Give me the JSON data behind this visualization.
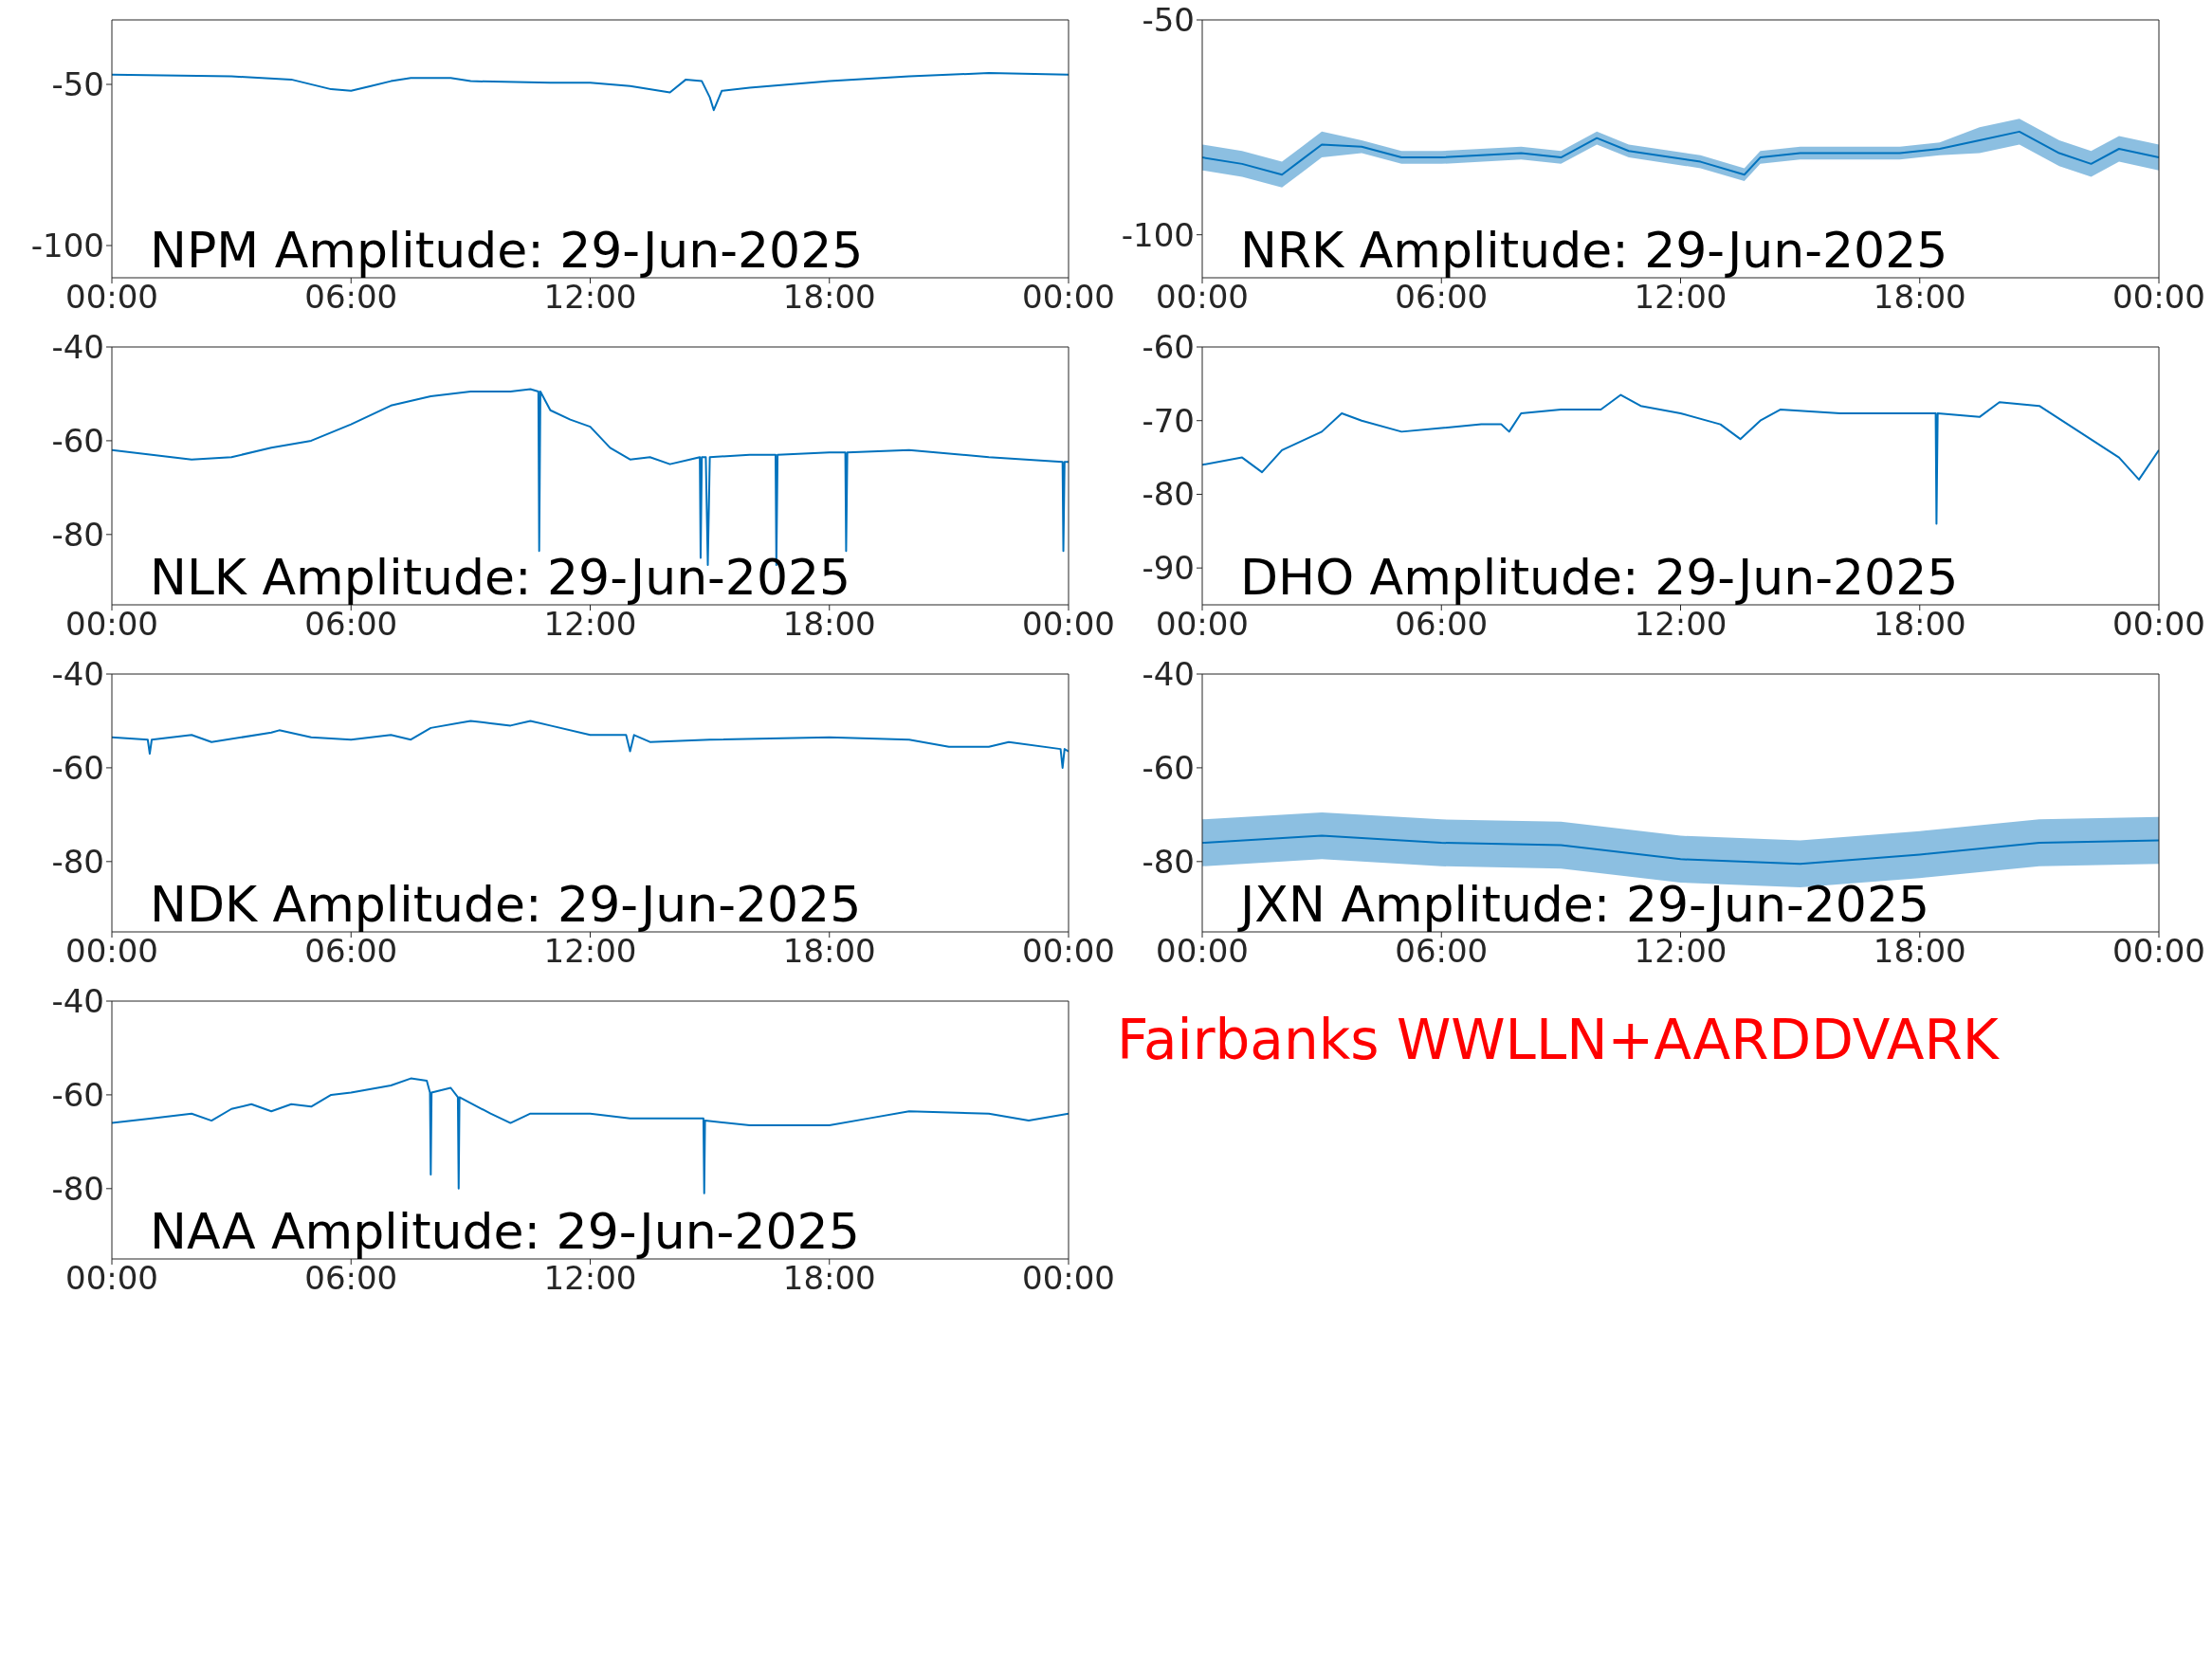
{
  "chart_data": [
    {
      "type": "line",
      "title": "NPM Amplitude: 29-Jun-2025",
      "xlim": [
        0,
        24
      ],
      "xticks": [
        {
          "value": 0,
          "label": "00:00"
        },
        {
          "value": 6,
          "label": "06:00"
        },
        {
          "value": 12,
          "label": "12:00"
        },
        {
          "value": 18,
          "label": "18:00"
        },
        {
          "value": 24,
          "label": "00:00"
        }
      ],
      "ylim": [
        -110,
        -30
      ],
      "yticks": [
        -100,
        -50
      ],
      "series": [
        {
          "color": "#0072bd",
          "x": [
            0,
            3,
            4.5,
            5.5,
            6,
            6.5,
            7,
            7.5,
            8.5,
            9,
            11,
            12,
            13,
            14,
            14.4,
            14.8,
            15,
            15.1,
            15.3,
            16,
            18,
            20,
            22,
            24
          ],
          "values": [
            -47,
            -47.5,
            -48.5,
            -51.5,
            -52,
            -50.5,
            -49,
            -48,
            -48,
            -49,
            -49.5,
            -49.5,
            -50.5,
            -52.5,
            -48.5,
            -49,
            -54,
            -58,
            -52,
            -51,
            -49,
            -47.5,
            -46.5,
            -47
          ]
        }
      ]
    },
    {
      "type": "line",
      "title": "NRK Amplitude: 29-Jun-2025",
      "xlim": [
        0,
        24
      ],
      "xticks": [
        {
          "value": 0,
          "label": "00:00"
        },
        {
          "value": 6,
          "label": "06:00"
        },
        {
          "value": 12,
          "label": "12:00"
        },
        {
          "value": 18,
          "label": "18:00"
        },
        {
          "value": 24,
          "label": "00:00"
        }
      ],
      "ylim": [
        -110,
        -50
      ],
      "yticks": [
        -100,
        -50
      ],
      "series": [
        {
          "color": "#0072bd",
          "x": [
            0,
            1,
            2,
            2.5,
            3,
            4,
            5,
            6,
            8,
            9,
            9.9,
            10.7,
            12.5,
            13.6,
            14,
            15,
            17.5,
            18.5,
            19.5,
            20.5,
            21.5,
            22.3,
            23,
            24
          ],
          "values": [
            -82,
            -83.5,
            -86,
            -82.5,
            -79,
            -79.5,
            -82,
            -82,
            -81,
            -82,
            -77.5,
            -80.5,
            -83,
            -86,
            -82,
            -81,
            -81,
            -80,
            -78,
            -76,
            -81,
            -83.5,
            -80,
            -82
          ],
          "lower": [
            -85,
            -86.5,
            -89,
            -85.5,
            -82,
            -81,
            -83.5,
            -83.5,
            -82.5,
            -83.5,
            -79,
            -82,
            -84.5,
            -87.5,
            -83.5,
            -82.5,
            -82.5,
            -81.5,
            -81,
            -79,
            -84,
            -86.5,
            -83,
            -85
          ],
          "upper": [
            -79,
            -80.5,
            -83,
            -79.5,
            -76,
            -78,
            -80.5,
            -80.5,
            -79.5,
            -80.5,
            -76,
            -79,
            -81.5,
            -84.5,
            -80.5,
            -79.5,
            -79.5,
            -78.5,
            -75,
            -73,
            -78,
            -80.5,
            -77,
            -79
          ]
        }
      ]
    },
    {
      "type": "line",
      "title": "NLK Amplitude: 29-Jun-2025",
      "xlim": [
        0,
        24
      ],
      "xticks": [
        {
          "value": 0,
          "label": "00:00"
        },
        {
          "value": 6,
          "label": "06:00"
        },
        {
          "value": 12,
          "label": "12:00"
        },
        {
          "value": 18,
          "label": "18:00"
        },
        {
          "value": 24,
          "label": "00:00"
        }
      ],
      "ylim": [
        -95,
        -40
      ],
      "yticks": [
        -80,
        -60,
        -40
      ],
      "series": [
        {
          "color": "#0072bd",
          "x": [
            0,
            2,
            3,
            4,
            5,
            6,
            7,
            8,
            9,
            10,
            10.5,
            10.7,
            10.72,
            10.75,
            11,
            11.5,
            12,
            12.5,
            13,
            13.5,
            14,
            14.5,
            14.75,
            14.77,
            14.8,
            14.9,
            14.95,
            15,
            16,
            16.65,
            16.67,
            16.7,
            18,
            18.4,
            18.42,
            18.45,
            20,
            22,
            23.85,
            23.87,
            23.9,
            24
          ],
          "values": [
            -62,
            -64,
            -63.5,
            -61.5,
            -60,
            -56.5,
            -52.5,
            -50.5,
            -49.5,
            -49.5,
            -49,
            -49.5,
            -83.5,
            -49.5,
            -53.5,
            -55.5,
            -57,
            -61.5,
            -64,
            -63.5,
            -65,
            -64,
            -63.5,
            -85,
            -63.5,
            -63.5,
            -86.5,
            -63.5,
            -63,
            -63,
            -86.5,
            -63,
            -62.5,
            -62.5,
            -83.5,
            -62.5,
            -62,
            -63.5,
            -64.5,
            -83.5,
            -64.5,
            -64.5
          ]
        }
      ]
    },
    {
      "type": "line",
      "title": "DHO Amplitude: 29-Jun-2025",
      "xlim": [
        0,
        24
      ],
      "xticks": [
        {
          "value": 0,
          "label": "00:00"
        },
        {
          "value": 6,
          "label": "06:00"
        },
        {
          "value": 12,
          "label": "12:00"
        },
        {
          "value": 18,
          "label": "18:00"
        },
        {
          "value": 24,
          "label": "00:00"
        }
      ],
      "ylim": [
        -95,
        -60
      ],
      "yticks": [
        -90,
        -80,
        -70,
        -60
      ],
      "series": [
        {
          "color": "#0072bd",
          "x": [
            0,
            1,
            1.5,
            2,
            3,
            3.5,
            4,
            5,
            6,
            7,
            7.5,
            7.7,
            8,
            9,
            10,
            10.5,
            11,
            12,
            13,
            13.5,
            14,
            14.5,
            16,
            18,
            18.4,
            18.42,
            18.45,
            19.5,
            20,
            21,
            22,
            23,
            23.5,
            24
          ],
          "values": [
            -76,
            -75,
            -77,
            -74,
            -71.5,
            -69,
            -70,
            -71.5,
            -71,
            -70.5,
            -70.5,
            -71.5,
            -69,
            -68.5,
            -68.5,
            -66.5,
            -68,
            -69,
            -70.5,
            -72.5,
            -70,
            -68.5,
            -69,
            -69,
            -69,
            -84,
            -69,
            -69.5,
            -67.5,
            -68,
            -71.5,
            -75,
            -78,
            -74
          ]
        }
      ]
    },
    {
      "type": "line",
      "title": "NDK Amplitude: 29-Jun-2025",
      "xlim": [
        0,
        24
      ],
      "xticks": [
        {
          "value": 0,
          "label": "00:00"
        },
        {
          "value": 6,
          "label": "06:00"
        },
        {
          "value": 12,
          "label": "12:00"
        },
        {
          "value": 18,
          "label": "18:00"
        },
        {
          "value": 24,
          "label": "00:00"
        }
      ],
      "ylim": [
        -95,
        -40
      ],
      "yticks": [
        -80,
        -60,
        -40
      ],
      "series": [
        {
          "color": "#0072bd",
          "x": [
            0,
            0.9,
            0.95,
            1,
            2,
            2.5,
            4,
            4.2,
            5,
            6,
            7,
            7.5,
            8,
            9,
            9.5,
            10,
            10.5,
            11,
            12,
            12.9,
            13,
            13.1,
            13.5,
            15,
            18,
            20,
            21,
            22,
            22.5,
            23.8,
            23.85,
            23.9,
            24
          ],
          "values": [
            -53.5,
            -54,
            -57,
            -54,
            -53,
            -54.5,
            -52.5,
            -52,
            -53.5,
            -54,
            -53,
            -54,
            -51.5,
            -50,
            -50.5,
            -51,
            -50,
            -51,
            -53,
            -53,
            -56.5,
            -53,
            -54.5,
            -54,
            -53.5,
            -54,
            -55.5,
            -55.5,
            -54.5,
            -56,
            -60,
            -56,
            -56.5
          ]
        }
      ]
    },
    {
      "type": "line",
      "title": "JXN Amplitude: 29-Jun-2025",
      "xlim": [
        0,
        24
      ],
      "xticks": [
        {
          "value": 0,
          "label": "00:00"
        },
        {
          "value": 6,
          "label": "06:00"
        },
        {
          "value": 12,
          "label": "12:00"
        },
        {
          "value": 18,
          "label": "18:00"
        },
        {
          "value": 24,
          "label": "00:00"
        }
      ],
      "ylim": [
        -95,
        -40
      ],
      "yticks": [
        -80,
        -60,
        -40
      ],
      "series": [
        {
          "color": "#0072bd",
          "x": [
            0,
            3,
            6,
            9,
            12,
            15,
            18,
            21,
            24
          ],
          "values": [
            -76,
            -74.5,
            -76,
            -76.5,
            -79.5,
            -80.5,
            -78.5,
            -76,
            -75.5
          ],
          "lower": [
            -81,
            -79.5,
            -81,
            -81.5,
            -84.5,
            -85.5,
            -83.5,
            -81,
            -80.5
          ],
          "upper": [
            -71,
            -69.5,
            -71,
            -71.5,
            -74.5,
            -75.5,
            -73.5,
            -71,
            -70.5
          ]
        }
      ]
    },
    {
      "type": "line",
      "title": "NAA Amplitude: 29-Jun-2025",
      "xlim": [
        0,
        24
      ],
      "xticks": [
        {
          "value": 0,
          "label": "00:00"
        },
        {
          "value": 6,
          "label": "06:00"
        },
        {
          "value": 12,
          "label": "12:00"
        },
        {
          "value": 18,
          "label": "18:00"
        },
        {
          "value": 24,
          "label": "00:00"
        }
      ],
      "ylim": [
        -95,
        -40
      ],
      "yticks": [
        -80,
        -60,
        -40
      ],
      "series": [
        {
          "color": "#0072bd",
          "x": [
            0,
            1,
            2,
            2.5,
            3,
            3.5,
            4,
            4.5,
            5,
            5.5,
            6,
            7,
            7.5,
            7.9,
            7.98,
            8,
            8.02,
            8.5,
            8.68,
            8.7,
            8.72,
            9.5,
            10,
            10.5,
            12,
            13,
            14.84,
            14.86,
            14.88,
            16,
            18,
            19,
            20,
            22,
            23,
            24
          ],
          "values": [
            -66,
            -65,
            -64,
            -65.5,
            -63,
            -62,
            -63.5,
            -62,
            -62.5,
            -60,
            -59.5,
            -58,
            -56.5,
            -57,
            -59.5,
            -77,
            -59.5,
            -58.5,
            -60.5,
            -80,
            -60.5,
            -64,
            -66,
            -64,
            -64,
            -65,
            -65,
            -81,
            -65.5,
            -66.5,
            -66.5,
            -65,
            -63.5,
            -64,
            -65.5,
            -64
          ]
        }
      ]
    },
    {
      "type": "other",
      "title": "Fairbanks WWLLN+AARDDVARK",
      "color": "#ff0000"
    }
  ]
}
